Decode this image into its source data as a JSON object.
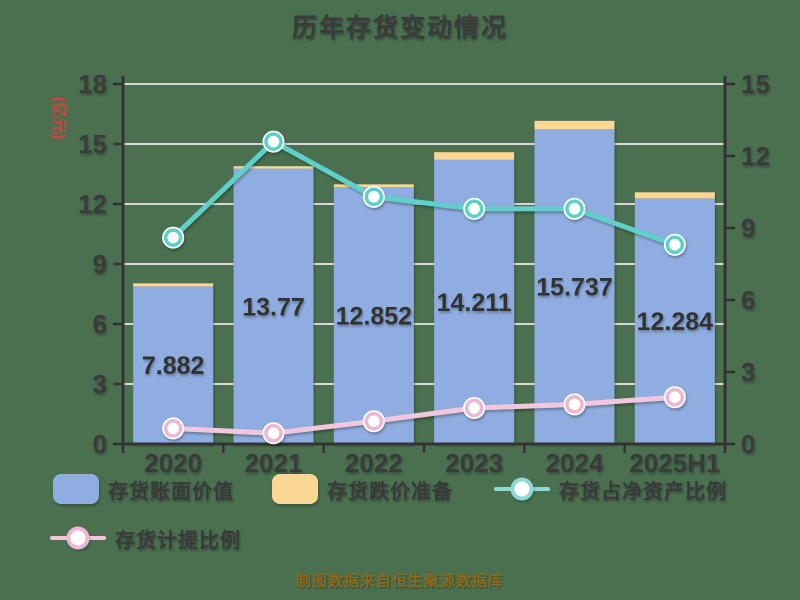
{
  "title": "历年存货变动情况",
  "footer": "制图数据来自恒生聚源数据库",
  "colors": {
    "background": "#4A7050",
    "bar_blue": "#8FADE0",
    "bar_yellow": "#FBD793",
    "line_teal": "#5FD0C9",
    "legend_teal": "#8ED8D5",
    "line_pink": "#F2C7DE",
    "marker_ring_pink": "#EBB7D4",
    "title_text": "#3B3B3B",
    "axis_text": "#3B3B3B",
    "axis_line": "#333333",
    "grid": "#D6D6D6",
    "unit_red": "#E03C3C",
    "footer_gold": "#8A6A1E",
    "bar_label_text": "#333333"
  },
  "legend": {
    "items": [
      {
        "label": "存货账面价值",
        "marker": "bar",
        "color_key": "bar_blue"
      },
      {
        "label": "存货跌价准备",
        "marker": "bar",
        "color_key": "bar_yellow"
      },
      {
        "label": "存货占净资产比例",
        "marker": "line",
        "color_key": "legend_teal"
      },
      {
        "label": "存货计提比例",
        "marker": "line",
        "color_key": "line_pink"
      }
    ]
  },
  "chart_data": {
    "type": "bar",
    "subtype": "stacked-bars-with-lines",
    "categories": [
      "2020",
      "2021",
      "2022",
      "2023",
      "2024",
      "2025H1"
    ],
    "series": [
      {
        "name": "存货账面价值",
        "type": "bar",
        "axis": "left",
        "values": [
          7.882,
          13.77,
          12.852,
          14.211,
          15.737,
          12.284
        ]
      },
      {
        "name": "存货跌价准备",
        "type": "bar-stacked-on-top",
        "axis": "left",
        "values": [
          0.15,
          0.12,
          0.13,
          0.38,
          0.42,
          0.3
        ]
      },
      {
        "name": "存货占净资产比例",
        "type": "line",
        "axis": "right",
        "values": [
          8.6,
          12.6,
          10.3,
          9.8,
          9.8,
          8.3
        ]
      },
      {
        "name": "存货计提比例",
        "type": "line",
        "axis": "right",
        "values": [
          0.65,
          0.45,
          0.95,
          1.5,
          1.65,
          1.95
        ]
      }
    ],
    "bar_labels": [
      "7.882",
      "13.77",
      "12.852",
      "14.211",
      "15.737",
      "12.284"
    ],
    "title": "历年存货变动情况",
    "left_axis": {
      "label": "(亿元)",
      "min": 0,
      "max": 18,
      "step": 3
    },
    "right_axis": {
      "label": "(%)",
      "min": 0,
      "max": 15,
      "step": 3
    },
    "grid": true,
    "legend_position": "bottom"
  }
}
